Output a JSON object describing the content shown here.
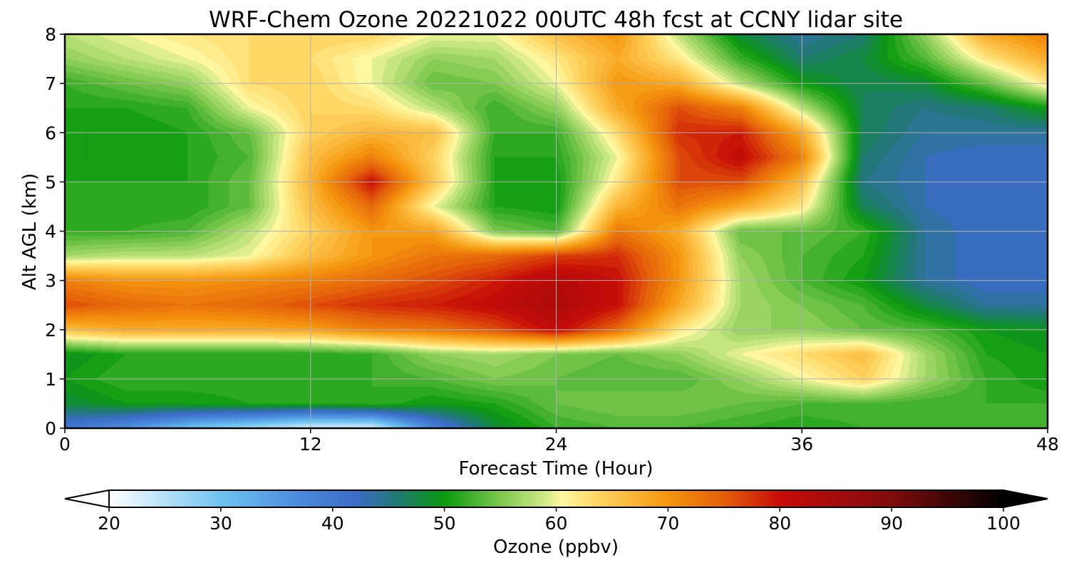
{
  "chart_data": {
    "type": "heatmap",
    "title": "WRF-Chem Ozone  20221022 00UTC 48h fcst at CCNY lidar site",
    "xlabel": "Forecast Time (Hour)",
    "ylabel": "Alt AGL (km)",
    "xlim": [
      0,
      48
    ],
    "ylim": [
      0,
      8
    ],
    "xticks": [
      0,
      12,
      24,
      36,
      48
    ],
    "yticks": [
      0,
      1,
      2,
      3,
      4,
      5,
      6,
      7,
      8
    ],
    "grid": true,
    "x": [
      0,
      3,
      6,
      9,
      12,
      15,
      18,
      21,
      24,
      27,
      30,
      33,
      36,
      39,
      42,
      45,
      48
    ],
    "y": [
      0,
      0.5,
      1,
      1.5,
      2,
      2.5,
      3,
      3.5,
      4,
      4.5,
      5,
      5.5,
      6,
      6.5,
      7,
      7.5,
      8
    ],
    "z": [
      [
        40,
        36,
        30,
        26,
        22,
        22,
        38,
        48,
        52,
        53,
        53,
        52,
        51,
        52,
        52,
        52,
        52
      ],
      [
        48,
        50,
        50,
        51,
        51,
        52,
        50,
        51,
        54,
        55,
        55,
        54,
        53,
        53,
        52,
        52,
        52
      ],
      [
        50,
        52,
        52,
        52,
        52,
        52,
        53,
        55,
        54,
        53,
        53,
        56,
        60,
        64,
        57,
        52,
        50
      ],
      [
        49,
        51,
        51,
        51,
        51,
        52,
        56,
        57,
        55,
        54,
        56,
        60,
        63,
        66,
        57,
        51,
        50
      ],
      [
        66,
        68,
        68,
        68,
        69,
        72,
        73,
        76,
        81,
        74,
        62,
        56,
        56,
        54,
        53,
        50,
        49
      ],
      [
        76,
        74,
        73,
        74,
        76,
        78,
        79,
        81,
        84,
        80,
        68,
        57,
        55,
        53,
        48,
        44,
        44
      ],
      [
        72,
        70,
        70,
        71,
        72,
        74,
        76,
        79,
        83,
        80,
        70,
        57,
        53,
        50,
        44,
        42,
        42
      ],
      [
        57,
        58,
        58,
        60,
        66,
        70,
        73,
        74,
        77,
        78,
        70,
        56,
        53,
        51,
        44,
        42,
        42
      ],
      [
        52,
        52,
        53,
        58,
        64,
        70,
        69,
        55,
        53,
        73,
        68,
        54,
        54,
        52,
        44,
        42,
        42
      ],
      [
        51,
        51,
        51,
        54,
        66,
        74,
        60,
        51,
        50,
        67,
        73,
        68,
        62,
        47,
        43,
        42,
        42
      ],
      [
        51,
        51,
        51,
        54,
        67,
        80,
        65,
        51,
        50,
        62,
        76,
        76,
        66,
        45,
        43,
        42,
        42
      ],
      [
        50,
        50,
        51,
        53,
        66,
        72,
        64,
        51,
        51,
        60,
        76,
        81,
        72,
        46,
        43,
        42,
        42
      ],
      [
        50,
        50,
        51,
        54,
        64,
        67,
        66,
        52,
        52,
        63,
        78,
        79,
        68,
        47,
        44,
        44,
        44
      ],
      [
        51,
        51,
        52,
        60,
        64,
        63,
        58,
        52,
        56,
        68,
        76,
        72,
        58,
        47,
        45,
        46,
        50
      ],
      [
        52,
        54,
        56,
        63,
        64,
        60,
        54,
        55,
        60,
        70,
        68,
        58,
        50,
        47,
        48,
        54,
        62
      ],
      [
        56,
        58,
        60,
        63,
        63,
        60,
        56,
        57,
        62,
        68,
        62,
        52,
        46,
        48,
        53,
        62,
        68
      ],
      [
        58,
        60,
        62,
        63,
        64,
        64,
        60,
        60,
        66,
        70,
        58,
        48,
        44,
        46,
        56,
        68,
        72
      ]
    ],
    "colorbar": {
      "label": "Ozone  (ppbv)",
      "min": 20,
      "max": 100,
      "ticks": [
        20,
        30,
        40,
        50,
        60,
        70,
        80,
        90,
        100
      ],
      "extend": "both",
      "stops": [
        {
          "v": 20,
          "c": "#ffffff"
        },
        {
          "v": 30,
          "c": "#6ec3f2"
        },
        {
          "v": 37,
          "c": "#4a8bdc"
        },
        {
          "v": 42,
          "c": "#3b6cc8"
        },
        {
          "v": 46,
          "c": "#1f7a6e"
        },
        {
          "v": 50,
          "c": "#0a9a0e"
        },
        {
          "v": 55,
          "c": "#7cc84e"
        },
        {
          "v": 59,
          "c": "#cfe988"
        },
        {
          "v": 60.5,
          "c": "#fff7a0"
        },
        {
          "v": 64,
          "c": "#ffd25e"
        },
        {
          "v": 70,
          "c": "#f5960e"
        },
        {
          "v": 75,
          "c": "#e45e0a"
        },
        {
          "v": 80,
          "c": "#c80c08"
        },
        {
          "v": 90,
          "c": "#800c0c"
        },
        {
          "v": 100,
          "c": "#000000"
        }
      ]
    }
  }
}
